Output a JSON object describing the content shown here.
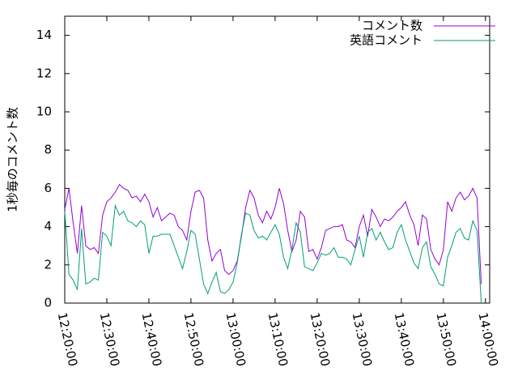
{
  "chart_data": {
    "type": "line",
    "ylabel": "1秒毎のコメント数",
    "x": [
      "12:20:00",
      "12:21:00",
      "12:22:00",
      "12:23:00",
      "12:24:00",
      "12:25:00",
      "12:26:00",
      "12:27:00",
      "12:28:00",
      "12:29:00",
      "12:30:00",
      "12:31:00",
      "12:32:00",
      "12:33:00",
      "12:34:00",
      "12:35:00",
      "12:36:00",
      "12:37:00",
      "12:38:00",
      "12:39:00",
      "12:40:00",
      "12:41:00",
      "12:42:00",
      "12:43:00",
      "12:44:00",
      "12:45:00",
      "12:46:00",
      "12:47:00",
      "12:48:00",
      "12:49:00",
      "12:50:00",
      "12:51:00",
      "12:52:00",
      "12:53:00",
      "12:54:00",
      "12:55:00",
      "12:56:00",
      "12:57:00",
      "12:58:00",
      "12:59:00",
      "13:00:00",
      "13:01:00",
      "13:02:00",
      "13:03:00",
      "13:04:00",
      "13:05:00",
      "13:06:00",
      "13:07:00",
      "13:08:00",
      "13:09:00",
      "13:10:00",
      "13:11:00",
      "13:12:00",
      "13:13:00",
      "13:14:00",
      "13:15:00",
      "13:16:00",
      "13:17:00",
      "13:18:00",
      "13:19:00",
      "13:20:00",
      "13:21:00",
      "13:22:00",
      "13:23:00",
      "13:24:00",
      "13:25:00",
      "13:26:00",
      "13:27:00",
      "13:28:00",
      "13:29:00",
      "13:30:00",
      "13:31:00",
      "13:32:00",
      "13:33:00",
      "13:34:00",
      "13:35:00",
      "13:36:00",
      "13:37:00",
      "13:38:00",
      "13:39:00",
      "13:40:00",
      "13:41:00",
      "13:42:00",
      "13:43:00",
      "13:44:00",
      "13:45:00",
      "13:46:00",
      "13:47:00",
      "13:48:00",
      "13:49:00",
      "13:50:00",
      "13:51:00",
      "13:52:00",
      "13:53:00",
      "13:54:00",
      "13:55:00",
      "13:56:00",
      "13:57:00",
      "13:58:00",
      "13:59:00"
    ],
    "series": [
      {
        "name": "コメント数",
        "color": "#9400d3",
        "values": [
          4.9,
          6.0,
          4.2,
          2.6,
          5.1,
          3.0,
          2.8,
          2.9,
          2.6,
          4.6,
          5.3,
          5.5,
          5.8,
          6.2,
          6.0,
          5.9,
          5.5,
          5.6,
          5.3,
          5.7,
          5.3,
          4.5,
          5.0,
          4.3,
          4.5,
          4.7,
          4.6,
          4.0,
          3.8,
          3.3,
          4.8,
          5.8,
          5.9,
          5.5,
          3.3,
          2.2,
          2.6,
          2.8,
          1.7,
          1.5,
          1.7,
          2.2,
          3.5,
          5.0,
          5.9,
          5.5,
          4.6,
          4.2,
          4.8,
          4.4,
          5.0,
          6.0,
          5.2,
          3.8,
          2.7,
          3.3,
          4.8,
          4.5,
          2.7,
          2.8,
          2.3,
          2.9,
          3.8,
          3.9,
          4.0,
          4.0,
          4.1,
          3.3,
          3.2,
          2.9,
          4.0,
          4.6,
          3.5,
          4.9,
          4.5,
          4.0,
          4.4,
          4.3,
          4.5,
          4.8,
          5.0,
          5.3,
          4.6,
          4.1,
          3.0,
          4.6,
          4.4,
          2.8,
          2.3,
          2.0,
          2.8,
          5.3,
          4.8,
          5.5,
          5.8,
          5.4,
          5.6,
          6.0,
          5.5,
          1.0
        ]
      },
      {
        "name": "英語コメント",
        "color": "#009e73",
        "values": [
          4.8,
          1.5,
          1.2,
          0.7,
          3.9,
          1.0,
          1.1,
          1.3,
          1.2,
          3.7,
          3.5,
          3.0,
          5.1,
          4.6,
          4.8,
          4.3,
          4.2,
          4.0,
          4.3,
          4.1,
          2.6,
          3.5,
          3.5,
          3.6,
          3.6,
          3.6,
          3.0,
          2.4,
          1.8,
          2.7,
          3.8,
          3.6,
          2.3,
          1.0,
          0.5,
          1.1,
          1.6,
          0.6,
          0.5,
          0.7,
          1.1,
          2.1,
          3.6,
          4.7,
          4.6,
          3.8,
          3.4,
          3.5,
          3.3,
          3.7,
          4.1,
          3.6,
          2.4,
          1.8,
          2.8,
          4.2,
          3.7,
          1.9,
          1.8,
          1.7,
          2.1,
          2.6,
          2.5,
          2.6,
          2.9,
          2.4,
          2.4,
          2.3,
          2.0,
          2.8,
          3.5,
          2.4,
          3.7,
          3.9,
          3.3,
          3.7,
          3.2,
          2.8,
          2.9,
          3.7,
          4.1,
          3.3,
          2.7,
          2.1,
          1.8,
          2.9,
          3.2,
          1.9,
          1.5,
          1.0,
          0.9,
          2.4,
          3.0,
          3.7,
          3.9,
          3.4,
          3.3,
          4.3,
          3.8,
          0.0
        ]
      }
    ],
    "xlim": [
      "12:20:00",
      "14:01:00"
    ],
    "xticks": [
      "12:20:00",
      "12:30:00",
      "12:40:00",
      "12:50:00",
      "13:00:00",
      "13:10:00",
      "13:20:00",
      "13:30:00",
      "13:40:00",
      "13:50:00",
      "14:00:00"
    ],
    "ylim": [
      0,
      15
    ],
    "yticks": [
      0,
      2,
      4,
      6,
      8,
      10,
      12,
      14
    ],
    "legend": "top-right"
  }
}
